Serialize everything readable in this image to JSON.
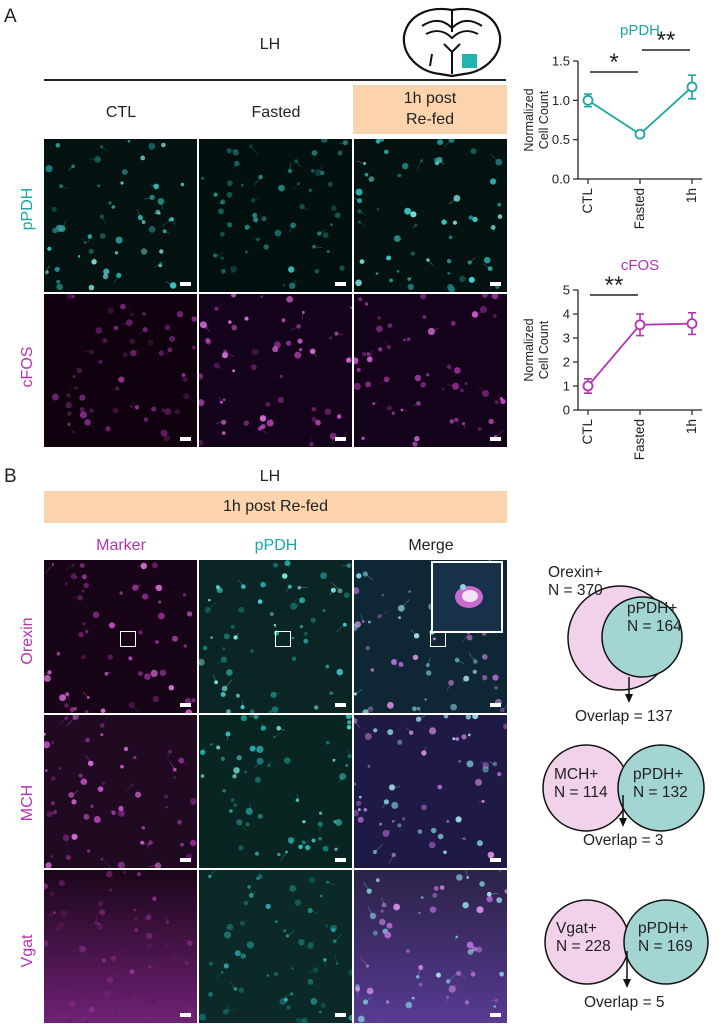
{
  "panelA": {
    "letter": "A",
    "region": "LH",
    "columns": [
      "CTL",
      "Fasted",
      "1h post Re-fed"
    ],
    "refed_line1": "1h post",
    "refed_line2": "Re-fed",
    "rows": [
      "pPDH",
      "cFOS"
    ]
  },
  "panelB": {
    "letter": "B",
    "region": "LH",
    "condition": "1h post Re-fed",
    "columns": [
      "Marker",
      "pPDH",
      "Merge"
    ],
    "rows": [
      "Orexin",
      "MCH",
      "Vgat"
    ],
    "venns": [
      {
        "a_name": "Orexin+",
        "a_n": "N = 370",
        "b_name": "pPDH+",
        "b_n": "N = 164",
        "overlap": "Overlap = 137"
      },
      {
        "a_name": "MCH+",
        "a_n": "N = 114",
        "b_name": "pPDH+",
        "b_n": "N = 132",
        "overlap": "Overlap = 3"
      },
      {
        "a_name": "Vgat+",
        "a_n": "N = 228",
        "b_name": "pPDH+",
        "b_n": "N = 169",
        "overlap": "Overlap = 5"
      }
    ]
  },
  "colors": {
    "teal": "#1ba8a4",
    "magenta": "#b533b3",
    "peach": "#fbd4ad",
    "venn_pink": "#f1d2ea",
    "venn_teal": "#a3d6d3"
  },
  "chart_data": [
    {
      "type": "line",
      "title": "pPDH",
      "ylabel": "Normalized Cell Count",
      "categories": [
        "CTL",
        "Fasted",
        "1h"
      ],
      "values": [
        1.0,
        0.57,
        1.17
      ],
      "errors": [
        0.08,
        0.03,
        0.15
      ],
      "ylim": [
        0,
        1.5
      ],
      "yticks": [
        "0.0",
        "0.5",
        "1.0",
        "1.5"
      ],
      "significance": [
        {
          "from": "CTL",
          "to": "Fasted",
          "label": "*"
        },
        {
          "from": "Fasted",
          "to": "1h",
          "label": "**"
        }
      ],
      "color": "#1ba8a4"
    },
    {
      "type": "line",
      "title": "cFOS",
      "ylabel": "Normalized Cell Count",
      "categories": [
        "CTL",
        "Fasted",
        "1h"
      ],
      "values": [
        1.0,
        3.55,
        3.6
      ],
      "errors": [
        0.3,
        0.45,
        0.45
      ],
      "ylim": [
        0,
        5
      ],
      "yticks": [
        "0",
        "1",
        "2",
        "3",
        "4",
        "5"
      ],
      "significance": [
        {
          "from": "CTL",
          "to": "Fasted",
          "label": "**"
        }
      ],
      "color": "#b533b3"
    }
  ]
}
